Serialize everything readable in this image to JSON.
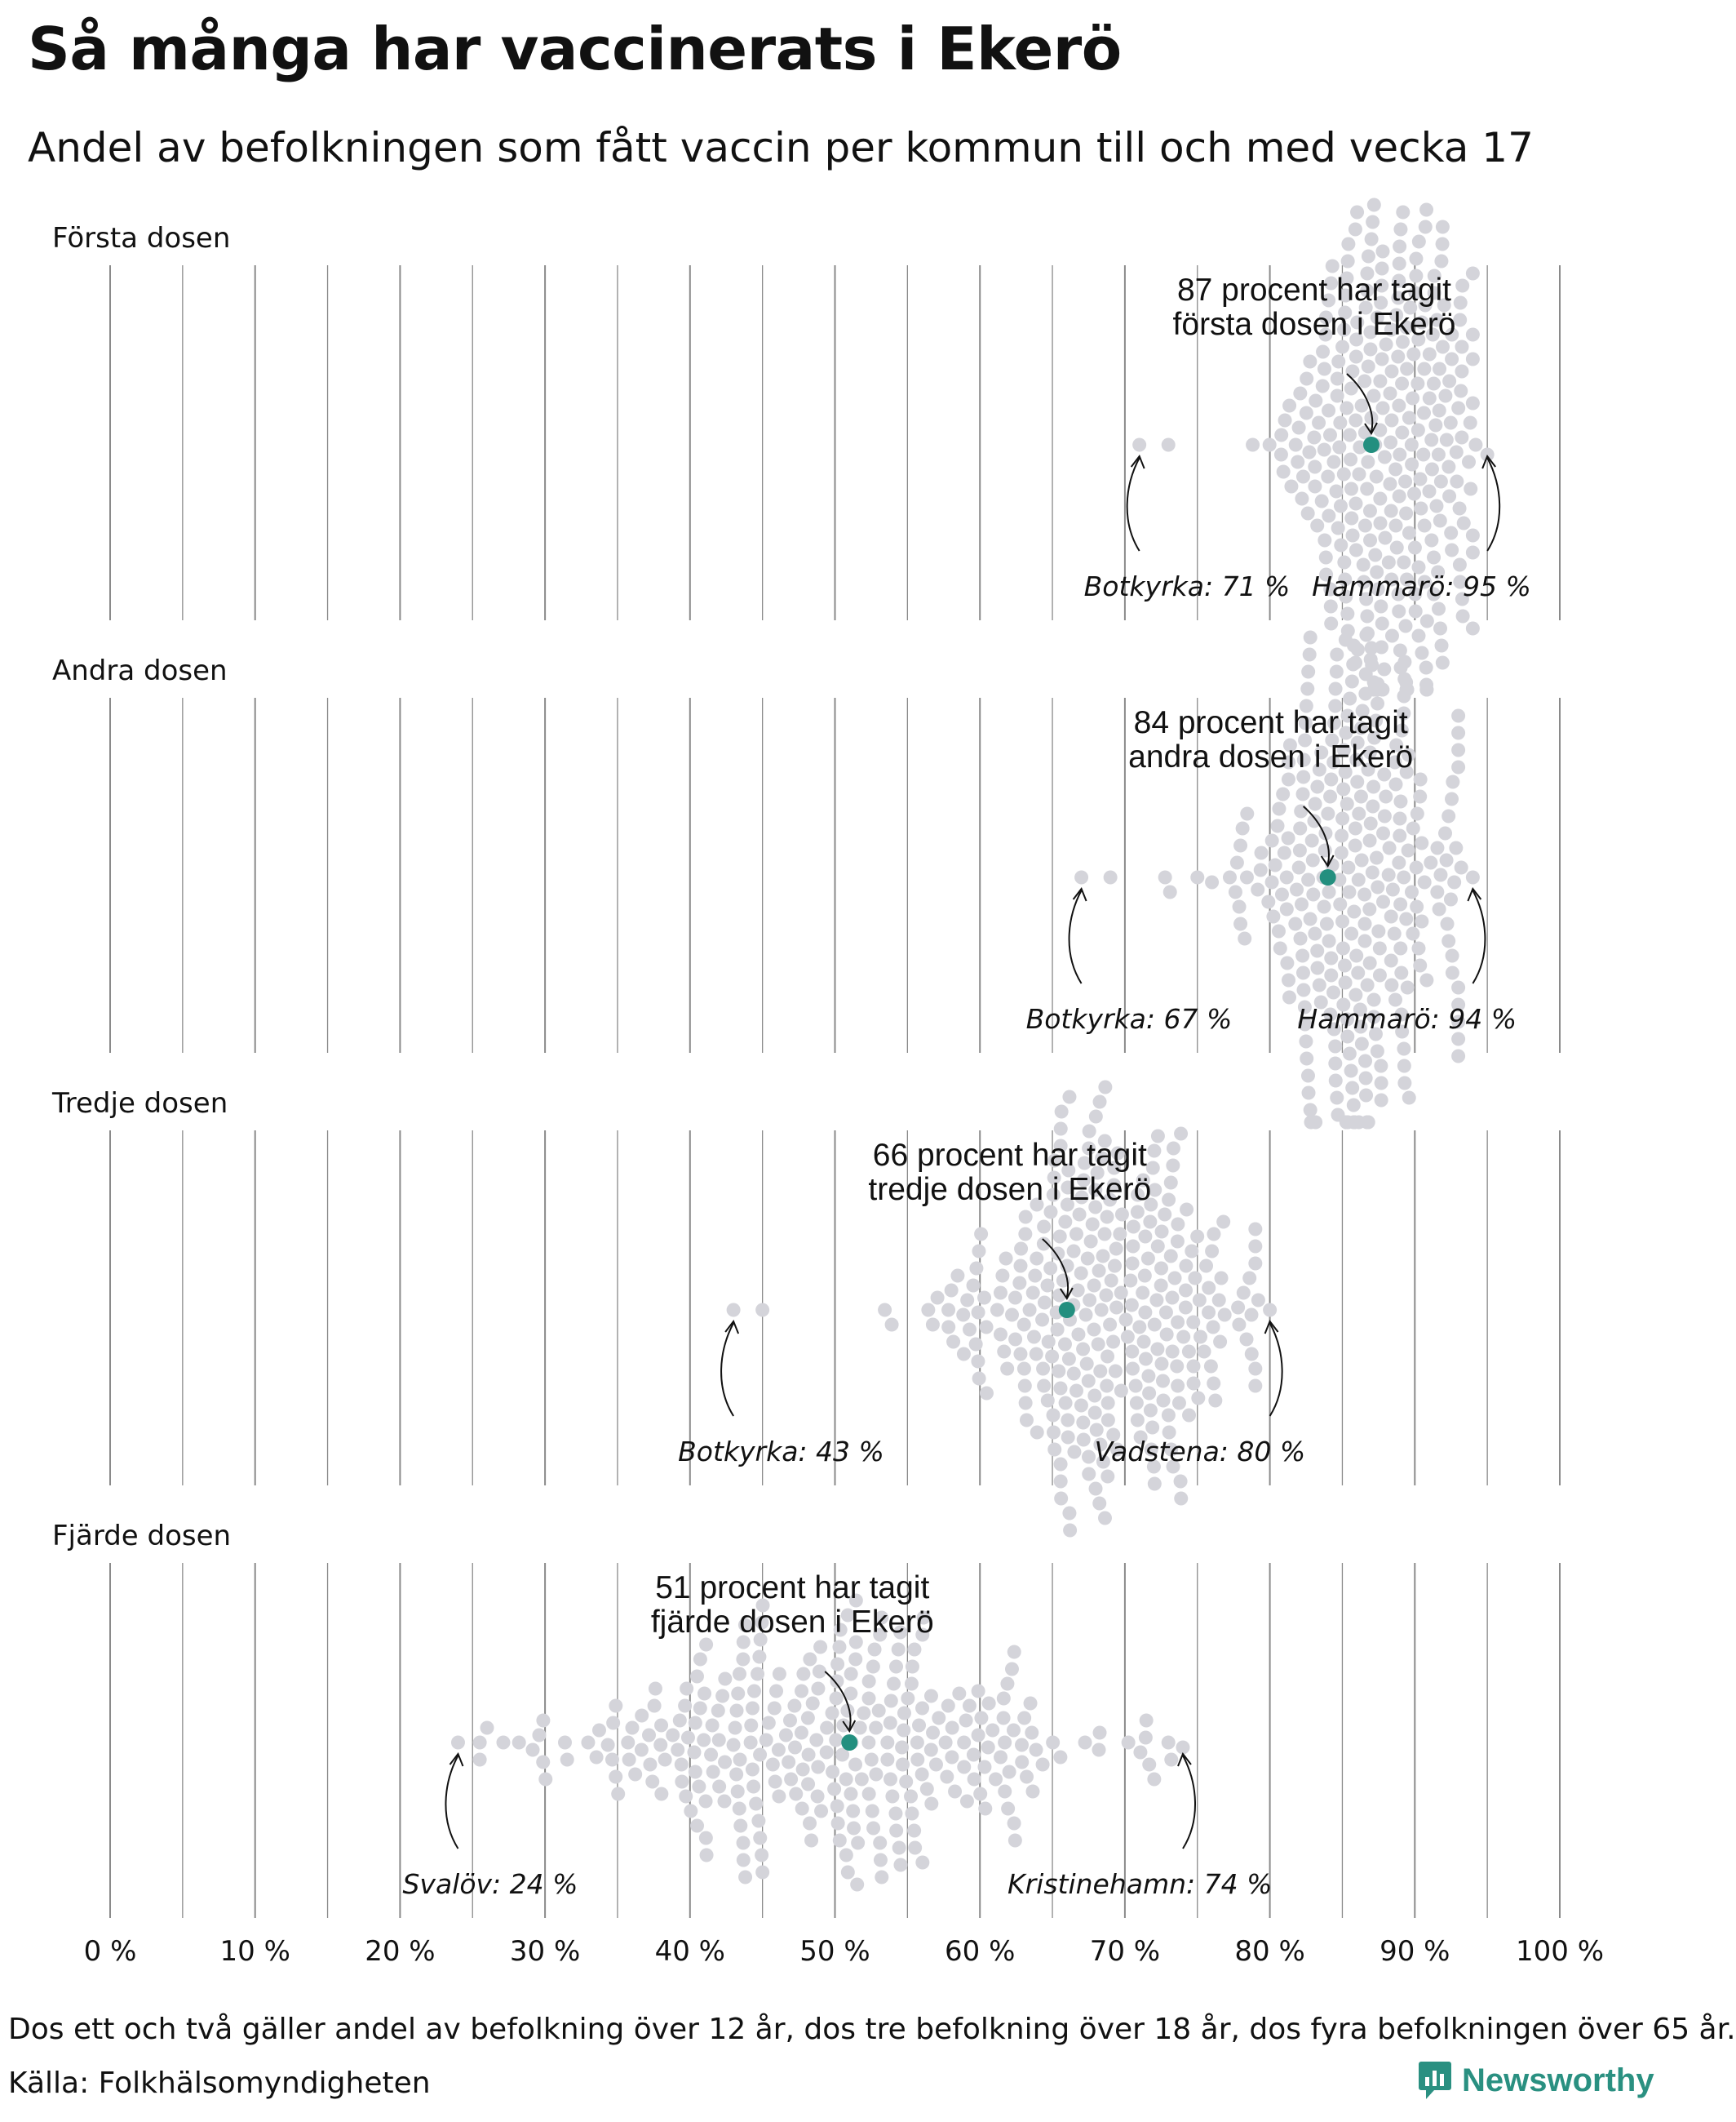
{
  "title": "Så många har vaccinerats i Ekerö",
  "subtitle": "Andel av befolkningen som fått vaccin per kommun till och med vecka 17",
  "footnote": "Dos ett och två gäller andel av befolkning över 12 år, dos tre befolkning över 18 år, dos fyra befolkningen över 65 år.",
  "source": "Källa: Folkhälsomyndigheten",
  "logo_text": "Newsworthy",
  "colors": {
    "highlight": "#238f7f",
    "dots": "#d4d4da",
    "grid": "#8a8a8a",
    "logo": "#2a9081"
  },
  "chart_data": {
    "type": "scatter",
    "x_ticks": [
      "0 %",
      "10 %",
      "20 %",
      "30 %",
      "40 %",
      "50 %",
      "60 %",
      "70 %",
      "80 %",
      "90 %",
      "100 %"
    ],
    "xlim": [
      0,
      100
    ],
    "panels": [
      {
        "label": "Första dosen",
        "highlight": {
          "value": 87,
          "line1": "87 procent har tagit",
          "line2": "första dosen i Ekerö"
        },
        "min": {
          "value": 71,
          "label": "Botkyrka: 71 %"
        },
        "max": {
          "value": 95,
          "label": "Hammarö: 95 %"
        },
        "distribution": {
          "mean": 88,
          "sd": 3.5,
          "count": 290
        }
      },
      {
        "label": "Andra dosen",
        "highlight": {
          "value": 84,
          "line1": "84 procent har tagit",
          "line2": "andra dosen i Ekerö"
        },
        "min": {
          "value": 67,
          "label": "Botkyrka: 67 %"
        },
        "max": {
          "value": 94,
          "label": "Hammarö: 94 %"
        },
        "distribution": {
          "mean": 86,
          "sd": 3.8,
          "count": 290
        }
      },
      {
        "label": "Tredje dosen",
        "highlight": {
          "value": 66,
          "line1": "66 procent har tagit",
          "line2": "tredje dosen i Ekerö"
        },
        "min": {
          "value": 43,
          "label": "Botkyrka: 43 %"
        },
        "max": {
          "value": 80,
          "label": "Vadstena: 80 %"
        },
        "distribution": {
          "mean": 68,
          "sd": 5.5,
          "count": 290
        }
      },
      {
        "label": "Fjärde dosen",
        "highlight": {
          "value": 51,
          "line1": "51 procent har tagit",
          "line2": "fjärde dosen i Ekerö"
        },
        "min": {
          "value": 24,
          "label": "Svalöv: 24 %"
        },
        "max": {
          "value": 74,
          "label": "Kristinehamn: 74 %"
        },
        "distribution": {
          "mean": 50,
          "sd": 9,
          "count": 290
        }
      }
    ]
  }
}
